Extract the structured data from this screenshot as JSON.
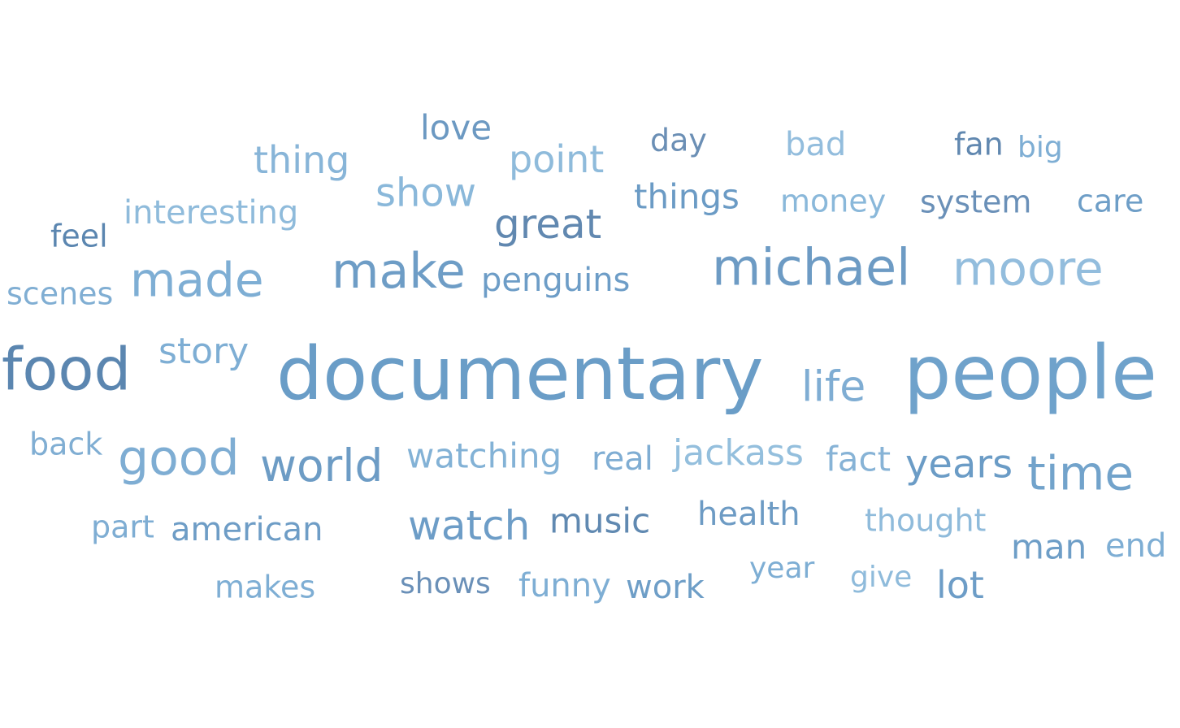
{
  "chart_data": {
    "type": "wordcloud",
    "title": "",
    "words": [
      {
        "text": "documentary",
        "color": "#6a9dc7"
      },
      {
        "text": "people",
        "color": "#6fa2cb"
      },
      {
        "text": "food",
        "color": "#5b86b0"
      },
      {
        "text": "michael",
        "color": "#6d9bc4"
      },
      {
        "text": "moore",
        "color": "#93bddd"
      },
      {
        "text": "make",
        "color": "#6e9dc6"
      },
      {
        "text": "good",
        "color": "#7eadd3"
      },
      {
        "text": "time",
        "color": "#72a3cb"
      },
      {
        "text": "made",
        "color": "#7eaed4"
      },
      {
        "text": "world",
        "color": "#6d9cc5"
      },
      {
        "text": "life",
        "color": "#7fadd3"
      },
      {
        "text": "great",
        "color": "#6188b0"
      },
      {
        "text": "watch",
        "color": "#6d9dc7"
      },
      {
        "text": "years",
        "color": "#6b9cc6"
      },
      {
        "text": "show",
        "color": "#8ab8da"
      },
      {
        "text": "thing",
        "color": "#88b5d8"
      },
      {
        "text": "point",
        "color": "#8fbbdb"
      },
      {
        "text": "jackass",
        "color": "#94bfdd"
      },
      {
        "text": "fact",
        "color": "#87b3d6"
      },
      {
        "text": "story",
        "color": "#7eaed4"
      },
      {
        "text": "watching",
        "color": "#83b2d6"
      },
      {
        "text": "music",
        "color": "#6089b1"
      },
      {
        "text": "things",
        "color": "#6b9bc5"
      },
      {
        "text": "man",
        "color": "#6e9ec7"
      },
      {
        "text": "love",
        "color": "#6c99c2"
      },
      {
        "text": "real",
        "color": "#7fadd3"
      },
      {
        "text": "health",
        "color": "#6d9bc4"
      },
      {
        "text": "lot",
        "color": "#6d9dc7"
      },
      {
        "text": "american",
        "color": "#6e9dc6"
      },
      {
        "text": "penguins",
        "color": "#6d9dc7"
      },
      {
        "text": "interesting",
        "color": "#8fbbdb"
      },
      {
        "text": "end",
        "color": "#7eaed4"
      },
      {
        "text": "thought",
        "color": "#8fbbdb"
      },
      {
        "text": "part",
        "color": "#7eadd3"
      },
      {
        "text": "scenes",
        "color": "#80aed3"
      },
      {
        "text": "makes",
        "color": "#7eaed4"
      },
      {
        "text": "work",
        "color": "#6e9ec7"
      },
      {
        "text": "funny",
        "color": "#7eaed4"
      },
      {
        "text": "care",
        "color": "#6e9ec7"
      },
      {
        "text": "system",
        "color": "#6a90b8"
      },
      {
        "text": "money",
        "color": "#8ab8da"
      },
      {
        "text": "back",
        "color": "#80aed3"
      },
      {
        "text": "feel",
        "color": "#5b86b0"
      },
      {
        "text": "year",
        "color": "#7eaed4"
      },
      {
        "text": "give",
        "color": "#8fbbdb"
      },
      {
        "text": "shows",
        "color": "#6a90b8"
      },
      {
        "text": "bad",
        "color": "#93bddd"
      },
      {
        "text": "big",
        "color": "#7eaed4"
      },
      {
        "text": "fan",
        "color": "#6188b0"
      },
      {
        "text": "day",
        "color": "#6b8fb5"
      }
    ]
  }
}
